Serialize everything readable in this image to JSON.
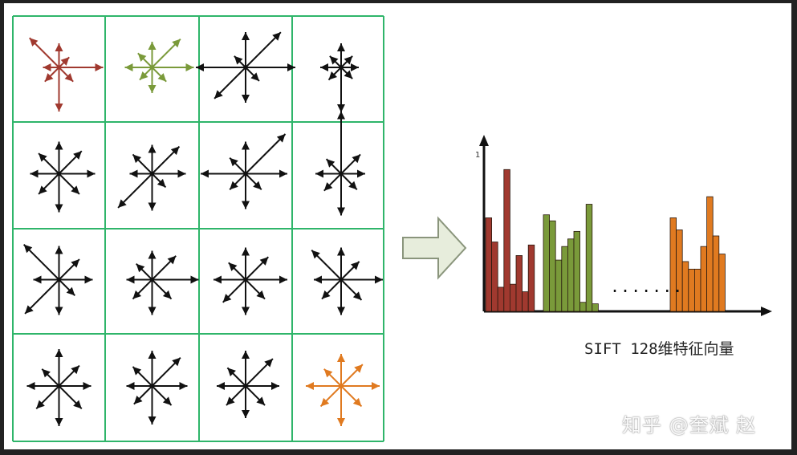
{
  "caption": "SIFT 128维特征向量",
  "watermark": "知乎 @奎斌 赵",
  "ellipsis": ".......",
  "y_tick": "1",
  "colors": {
    "grid_line": "#2fb56a",
    "red": "#a0392f",
    "green": "#7a9a3a",
    "orange": "#e07a20",
    "black": "#111111",
    "arrow_fill": "#e7eddc",
    "arrow_stroke": "#8a957c"
  },
  "grid": {
    "rows": 4,
    "cols": 4,
    "cells": [
      {
        "color": "red"
      },
      {
        "color": "green"
      },
      {
        "color": "black"
      },
      {
        "color": "black"
      },
      {
        "color": "black"
      },
      {
        "color": "black"
      },
      {
        "color": "black"
      },
      {
        "color": "black"
      },
      {
        "color": "black"
      },
      {
        "color": "black"
      },
      {
        "color": "black"
      },
      {
        "color": "black"
      },
      {
        "color": "black"
      },
      {
        "color": "black"
      },
      {
        "color": "black"
      },
      {
        "color": "orange"
      }
    ]
  },
  "chart_data": {
    "type": "bar",
    "title": "",
    "xlabel": "",
    "ylabel": "",
    "ylim": [
      0,
      1
    ],
    "groups": [
      {
        "color": "red",
        "values": [
          0.62,
          0.46,
          0.16,
          0.94,
          0.18,
          0.37,
          0.13,
          0.44
        ]
      },
      {
        "color": "green",
        "values": [
          0.64,
          0.6,
          0.34,
          0.43,
          0.48,
          0.53,
          0.06,
          0.71,
          0.05
        ]
      },
      {
        "color": "orange",
        "values": [
          0.62,
          0.54,
          0.33,
          0.28,
          0.28,
          0.43,
          0.76,
          0.5,
          0.38
        ]
      }
    ]
  }
}
